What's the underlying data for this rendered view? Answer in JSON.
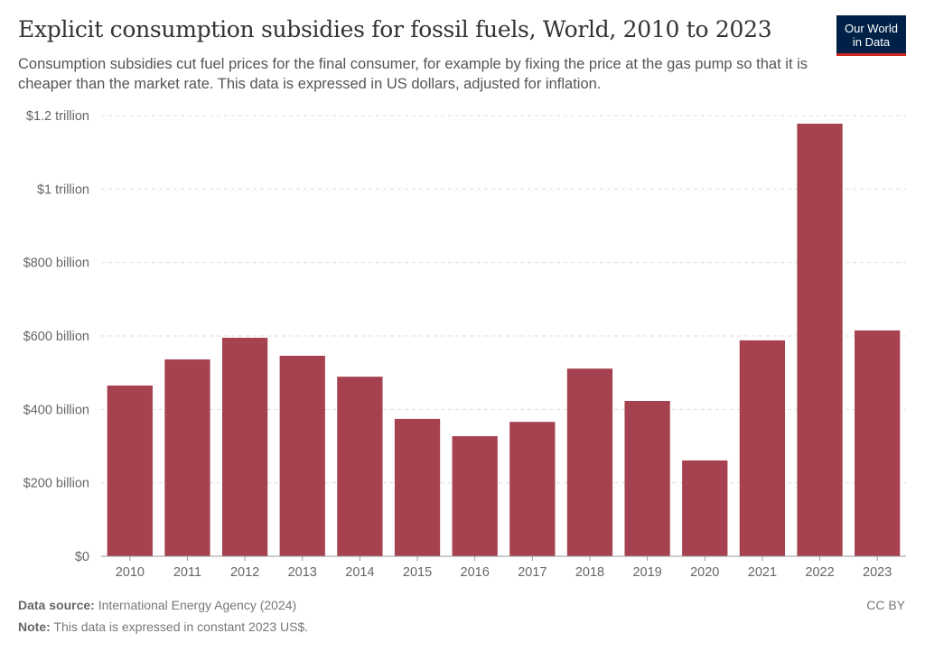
{
  "title": "Explicit consumption subsidies for fossil fuels, World, 2010 to 2023",
  "subtitle": "Consumption subsidies cut fuel prices for the final consumer, for example by fixing the price at the gas pump so that it is cheaper than the market rate. This data is expressed in US dollars, adjusted for inflation.",
  "logo": {
    "line1": "Our World",
    "line2": "in Data",
    "bg": "#002147",
    "accent": "#ce261e"
  },
  "footer": {
    "source_label": "Data source:",
    "source": "International Energy Agency (2024)",
    "note_label": "Note:",
    "note": "This data is expressed in constant 2023 US$.",
    "license": "CC BY"
  },
  "chart_data": {
    "type": "bar",
    "categories": [
      "2010",
      "2011",
      "2012",
      "2013",
      "2014",
      "2015",
      "2016",
      "2017",
      "2018",
      "2019",
      "2020",
      "2021",
      "2022",
      "2023"
    ],
    "values": [
      465,
      536,
      595,
      546,
      489,
      374,
      327,
      366,
      511,
      423,
      261,
      588,
      1178,
      615
    ],
    "unit": "billion US$ (constant 2023)",
    "ylim": [
      0,
      1200
    ],
    "yticks": [
      0,
      200,
      400,
      600,
      800,
      1000,
      1200
    ],
    "ytick_labels": [
      "$0",
      "$200 billion",
      "$400 billion",
      "$600 billion",
      "$800 billion",
      "$1 trillion",
      "$1.2 trillion"
    ],
    "grid": true,
    "bar_color": "#a6424f"
  }
}
